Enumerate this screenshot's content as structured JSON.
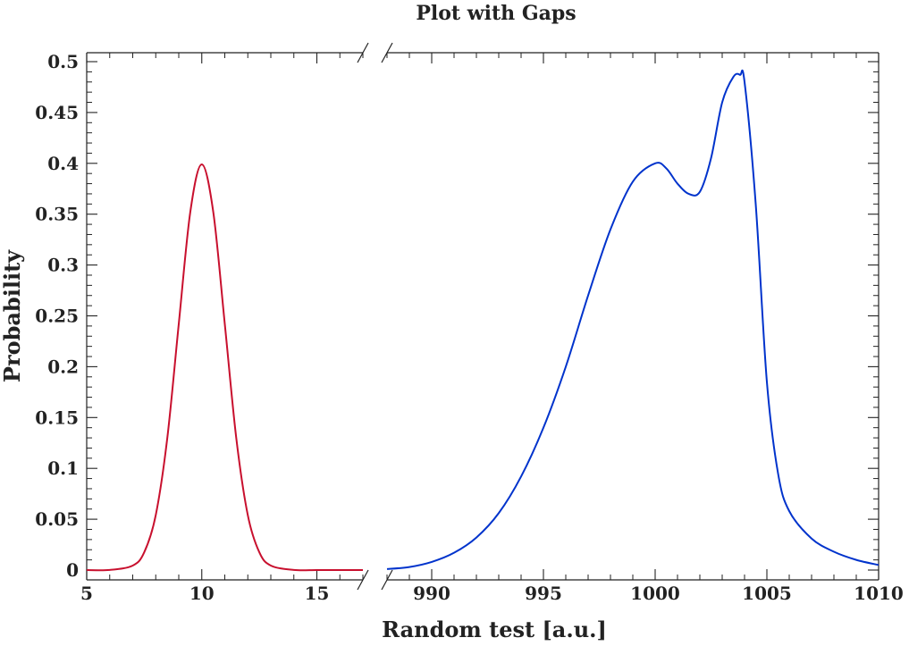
{
  "chart_data": {
    "type": "line",
    "title": "Plot with Gaps",
    "xlabel": "Random test [a.u.]",
    "ylabel": "Probability",
    "ylim": [
      0,
      0.5
    ],
    "broken_x_axis": true,
    "x_segments": [
      {
        "xlim": [
          5,
          17
        ],
        "ticks": [
          "5",
          "10",
          "15"
        ]
      },
      {
        "xlim": [
          988,
          1010
        ],
        "ticks": [
          "990",
          "995",
          "1000",
          "1005",
          "1010"
        ]
      }
    ],
    "y_ticks": [
      "0",
      "0.05",
      "0.1",
      "0.15",
      "0.2",
      "0.25",
      "0.3",
      "0.35",
      "0.4",
      "0.45",
      "0.5"
    ],
    "grid": false,
    "series": [
      {
        "color": "#c8102e",
        "segment": 0,
        "x": [
          5,
          6,
          7,
          7.5,
          8,
          8.5,
          9,
          9.5,
          10,
          10.5,
          11,
          11.5,
          12,
          12.5,
          13,
          14,
          15,
          16,
          17
        ],
        "y": [
          0.0,
          0.0001,
          0.0044,
          0.0175,
          0.054,
          0.1295,
          0.242,
          0.352,
          0.399,
          0.352,
          0.242,
          0.1295,
          0.054,
          0.0175,
          0.0044,
          0.0001,
          0.0,
          0.0,
          0.0
        ]
      },
      {
        "color": "#0033cc",
        "segment": 1,
        "x": [
          988,
          989,
          990,
          991,
          992,
          993,
          994,
          995,
          996,
          997,
          998,
          999,
          1000,
          1000.5,
          1001,
          1001.5,
          1002,
          1002.5,
          1003,
          1003.5,
          1003.8,
          1004,
          1004.5,
          1005,
          1005.5,
          1006,
          1007,
          1008,
          1009,
          1010
        ],
        "y": [
          0.001,
          0.003,
          0.008,
          0.017,
          0.032,
          0.056,
          0.092,
          0.14,
          0.2,
          0.27,
          0.335,
          0.382,
          0.4,
          0.395,
          0.38,
          0.37,
          0.372,
          0.405,
          0.46,
          0.485,
          0.487,
          0.48,
          0.36,
          0.185,
          0.095,
          0.058,
          0.031,
          0.018,
          0.01,
          0.005
        ]
      }
    ]
  }
}
